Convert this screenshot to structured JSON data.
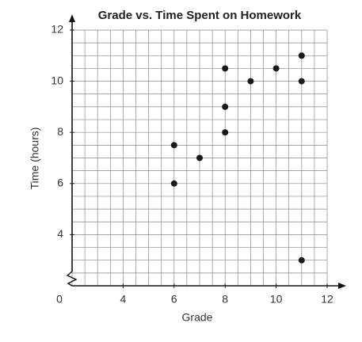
{
  "chart_data": {
    "type": "scatter",
    "title": "Grade vs. Time Spent on Homework",
    "x_label": "Grade",
    "y_label": "Time (hours)",
    "origin_label": "0",
    "x": [
      6,
      6,
      7,
      8,
      8,
      8,
      9,
      10,
      11,
      11,
      11
    ],
    "values": [
      7.5,
      6,
      7,
      10.5,
      9,
      8,
      10,
      10.5,
      11,
      10,
      3
    ],
    "color": "#1a1a1a",
    "xlim": [
      2,
      12
    ],
    "xticks": [
      4,
      6,
      8,
      10,
      12
    ],
    "ylim": [
      2,
      12
    ],
    "yticks": [
      4,
      6,
      8,
      10,
      12
    ],
    "grid": true,
    "axis_break": true
  }
}
